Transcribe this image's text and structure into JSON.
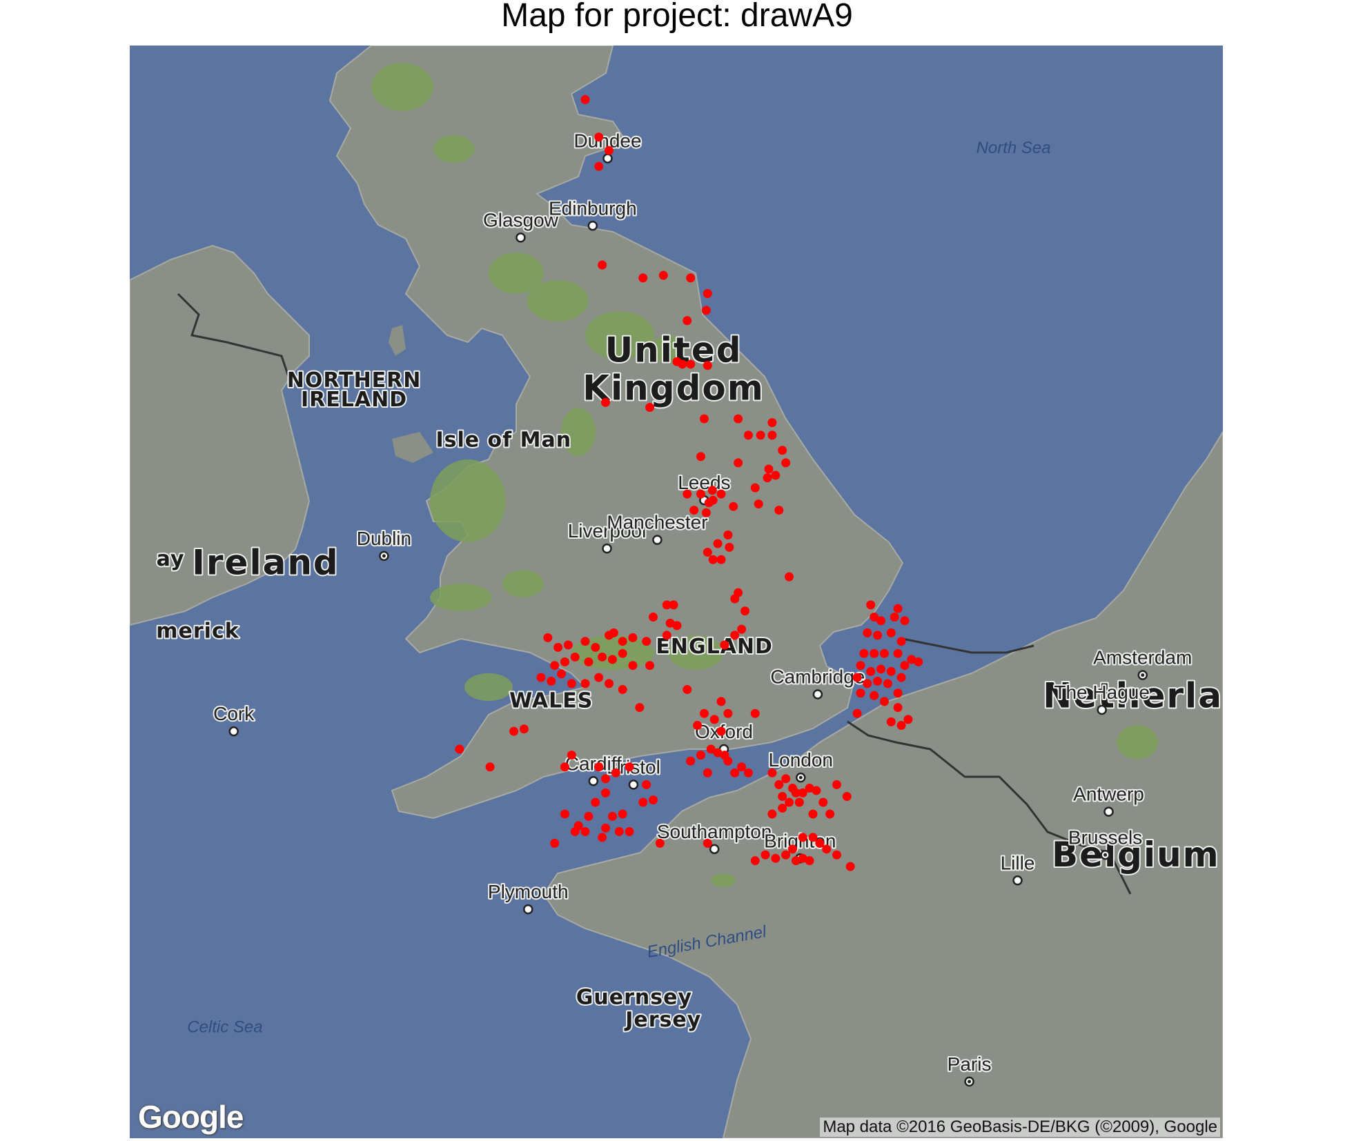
{
  "title": "Map for project: drawA9",
  "attribution": "Map data ©2016 GeoBasis-DE/BKG (©2009), Google",
  "logo": "Google",
  "colors": {
    "sea": "#5b74a0",
    "land": "#8a8f88",
    "forest": "#7ea05a",
    "point": "#ff0000",
    "border": "#333333"
  },
  "places": [
    {
      "name": "Dundee",
      "kind": "city",
      "lon": -2.97,
      "lat": 56.46
    },
    {
      "name": "Edinburgh",
      "kind": "city",
      "lon": -3.19,
      "lat": 55.95
    },
    {
      "name": "Glasgow",
      "kind": "city",
      "lon": -4.25,
      "lat": 55.86
    },
    {
      "name": "Liverpool",
      "kind": "city",
      "lon": -2.98,
      "lat": 53.41
    },
    {
      "name": "Manchester",
      "kind": "city",
      "lon": -2.24,
      "lat": 53.48
    },
    {
      "name": "Leeds",
      "kind": "city",
      "lon": -1.55,
      "lat": 53.8
    },
    {
      "name": "Dublin",
      "kind": "capital",
      "lon": -6.26,
      "lat": 53.35
    },
    {
      "name": "Cambridge",
      "kind": "city",
      "lon": 0.12,
      "lat": 52.21
    },
    {
      "name": "Oxford",
      "kind": "city",
      "lon": -1.26,
      "lat": 51.75
    },
    {
      "name": "London",
      "kind": "capital",
      "lon": -0.13,
      "lat": 51.51
    },
    {
      "name": "Bristol",
      "kind": "city",
      "lon": -2.59,
      "lat": 51.45
    },
    {
      "name": "Cardiff",
      "kind": "city",
      "lon": -3.18,
      "lat": 51.48
    },
    {
      "name": "Southampton",
      "kind": "city",
      "lon": -1.4,
      "lat": 50.9
    },
    {
      "name": "Brighton",
      "kind": "city",
      "lon": -0.14,
      "lat": 50.82
    },
    {
      "name": "Plymouth",
      "kind": "city",
      "lon": -4.14,
      "lat": 50.38
    },
    {
      "name": "Cork",
      "kind": "city",
      "lon": -8.47,
      "lat": 51.9
    },
    {
      "name": "Amsterdam",
      "kind": "capital",
      "lon": 4.9,
      "lat": 52.37
    },
    {
      "name": "The Hague",
      "kind": "city",
      "lon": 4.3,
      "lat": 52.08
    },
    {
      "name": "Antwerp",
      "kind": "city",
      "lon": 4.4,
      "lat": 51.22
    },
    {
      "name": "Brussels",
      "kind": "capital",
      "lon": 4.35,
      "lat": 50.85
    },
    {
      "name": "Lille",
      "kind": "city",
      "lon": 3.06,
      "lat": 50.63
    },
    {
      "name": "Paris",
      "kind": "capital",
      "lon": 2.35,
      "lat": 48.86
    }
  ],
  "regions": [
    {
      "name": "United",
      "lon": -2.0,
      "lat": 54.9
    },
    {
      "name": "Kingdom",
      "lon": -2.0,
      "lat": 54.6
    },
    {
      "name": "NORTHERN",
      "lon": -6.7,
      "lat": 54.7
    },
    {
      "name": "IRELAND",
      "lon": -6.7,
      "lat": 54.55
    },
    {
      "name": "Isle of Man",
      "lon": -4.5,
      "lat": 54.23
    },
    {
      "name": "Ireland",
      "lon": -8.0,
      "lat": 53.2
    },
    {
      "name": "ENGLAND",
      "lon": -1.4,
      "lat": 52.55
    },
    {
      "name": "WALES",
      "lon": -3.8,
      "lat": 52.1
    },
    {
      "name": "Guernsey",
      "lon": -2.58,
      "lat": 49.55
    },
    {
      "name": "Jersey",
      "lon": -2.15,
      "lat": 49.35
    },
    {
      "name": "Netherlands",
      "lon": 5.3,
      "lat": 52.1
    },
    {
      "name": "Belgium",
      "lon": 4.8,
      "lat": 50.75
    },
    {
      "name": "ay",
      "lon": -9.4,
      "lat": 53.27
    },
    {
      "name": "merick",
      "lon": -9.0,
      "lat": 52.68
    }
  ],
  "seas": [
    {
      "name": "North Sea",
      "lon": 3.0,
      "lat": 56.5
    },
    {
      "name": "English Channel",
      "lon": -1.5,
      "lat": 50.05
    },
    {
      "name": "Celtic Sea",
      "lon": -8.6,
      "lat": 49.3
    }
  ],
  "points": [
    [
      -3.3,
      56.9
    ],
    [
      -3.1,
      56.62
    ],
    [
      -2.95,
      56.52
    ],
    [
      -3.1,
      56.4
    ],
    [
      -3.05,
      55.65
    ],
    [
      -2.45,
      55.55
    ],
    [
      -2.15,
      55.57
    ],
    [
      -1.75,
      55.55
    ],
    [
      -1.5,
      55.43
    ],
    [
      -1.52,
      55.3
    ],
    [
      -1.8,
      55.22
    ],
    [
      -1.95,
      54.9
    ],
    [
      -1.87,
      54.88
    ],
    [
      -1.75,
      54.88
    ],
    [
      -1.5,
      54.87
    ],
    [
      -3.0,
      54.58
    ],
    [
      -2.35,
      54.54
    ],
    [
      -1.55,
      54.45
    ],
    [
      -1.05,
      54.45
    ],
    [
      -0.55,
      54.42
    ],
    [
      -0.9,
      54.32
    ],
    [
      -0.72,
      54.32
    ],
    [
      -0.55,
      54.32
    ],
    [
      -0.4,
      54.2
    ],
    [
      -0.35,
      54.1
    ],
    [
      -0.5,
      54.0
    ],
    [
      -0.6,
      54.05
    ],
    [
      -0.62,
      53.98
    ],
    [
      -0.8,
      53.9
    ],
    [
      -1.05,
      54.1
    ],
    [
      -1.6,
      54.15
    ],
    [
      -1.8,
      53.85
    ],
    [
      -1.6,
      53.85
    ],
    [
      -1.48,
      53.78
    ],
    [
      -1.42,
      53.8
    ],
    [
      -1.43,
      53.88
    ],
    [
      -1.7,
      53.72
    ],
    [
      -1.52,
      53.7
    ],
    [
      -1.3,
      53.85
    ],
    [
      -1.12,
      53.75
    ],
    [
      -0.75,
      53.77
    ],
    [
      -0.45,
      53.72
    ],
    [
      -1.2,
      53.52
    ],
    [
      -1.35,
      53.45
    ],
    [
      -1.18,
      53.42
    ],
    [
      -1.5,
      53.38
    ],
    [
      -1.42,
      53.32
    ],
    [
      -1.3,
      53.32
    ],
    [
      -0.3,
      53.18
    ],
    [
      -1.05,
      53.05
    ],
    [
      -1.1,
      53.0
    ],
    [
      -0.95,
      52.9
    ],
    [
      -2.1,
      52.95
    ],
    [
      -2.0,
      52.95
    ],
    [
      -2.3,
      52.85
    ],
    [
      -2.05,
      52.8
    ],
    [
      -1.95,
      52.78
    ],
    [
      -2.1,
      52.7
    ],
    [
      -1.1,
      52.7
    ],
    [
      -1.0,
      52.75
    ],
    [
      -1.25,
      52.62
    ],
    [
      -3.85,
      52.68
    ],
    [
      -3.7,
      52.6
    ],
    [
      -3.55,
      52.62
    ],
    [
      -3.3,
      52.65
    ],
    [
      -3.15,
      52.6
    ],
    [
      -2.95,
      52.7
    ],
    [
      -2.88,
      52.72
    ],
    [
      -2.75,
      52.65
    ],
    [
      -2.6,
      52.68
    ],
    [
      -2.4,
      52.65
    ],
    [
      -3.75,
      52.45
    ],
    [
      -3.6,
      52.48
    ],
    [
      -3.45,
      52.52
    ],
    [
      -3.25,
      52.48
    ],
    [
      -3.05,
      52.52
    ],
    [
      -2.9,
      52.5
    ],
    [
      -2.75,
      52.55
    ],
    [
      -2.6,
      52.45
    ],
    [
      -2.35,
      52.45
    ],
    [
      -3.95,
      52.35
    ],
    [
      -3.8,
      52.32
    ],
    [
      -3.65,
      52.38
    ],
    [
      -3.5,
      52.3
    ],
    [
      -3.3,
      52.3
    ],
    [
      -3.1,
      52.35
    ],
    [
      -2.95,
      52.3
    ],
    [
      -2.75,
      52.25
    ],
    [
      -2.5,
      52.1
    ],
    [
      -1.8,
      52.25
    ],
    [
      -1.3,
      52.15
    ],
    [
      -0.8,
      52.05
    ],
    [
      -1.55,
      52.05
    ],
    [
      -4.35,
      51.9
    ],
    [
      -4.2,
      51.92
    ],
    [
      -5.15,
      51.75
    ],
    [
      -4.7,
      51.6
    ],
    [
      -3.6,
      51.6
    ],
    [
      -3.5,
      51.7
    ],
    [
      -3.1,
      51.6
    ],
    [
      -3.0,
      51.5
    ],
    [
      -2.85,
      51.55
    ],
    [
      -2.65,
      51.6
    ],
    [
      -2.45,
      51.3
    ],
    [
      -2.3,
      51.32
    ],
    [
      -2.4,
      51.45
    ],
    [
      -3.0,
      51.38
    ],
    [
      -3.15,
      51.3
    ],
    [
      -3.25,
      51.18
    ],
    [
      -3.4,
      51.1
    ],
    [
      -3.3,
      51.05
    ],
    [
      -3.0,
      51.08
    ],
    [
      -2.9,
      51.18
    ],
    [
      -2.75,
      51.2
    ],
    [
      -3.6,
      51.2
    ],
    [
      -3.45,
      51.05
    ],
    [
      -3.05,
      51.0
    ],
    [
      -2.8,
      51.05
    ],
    [
      -2.65,
      51.05
    ],
    [
      -2.2,
      50.95
    ],
    [
      -3.75,
      50.95
    ],
    [
      -1.75,
      51.65
    ],
    [
      -1.6,
      51.7
    ],
    [
      -1.45,
      51.75
    ],
    [
      -1.35,
      51.72
    ],
    [
      -1.25,
      51.7
    ],
    [
      -1.2,
      51.65
    ],
    [
      -1.1,
      51.55
    ],
    [
      -1.0,
      51.6
    ],
    [
      -0.9,
      51.55
    ],
    [
      -1.5,
      51.55
    ],
    [
      -1.65,
      51.95
    ],
    [
      -1.4,
      52.0
    ],
    [
      -1.3,
      51.9
    ],
    [
      -1.2,
      52.05
    ],
    [
      -0.55,
      51.55
    ],
    [
      -0.45,
      51.45
    ],
    [
      -0.35,
      51.5
    ],
    [
      -0.25,
      51.42
    ],
    [
      -0.2,
      51.38
    ],
    [
      -0.1,
      51.38
    ],
    [
      0.0,
      51.42
    ],
    [
      0.1,
      51.4
    ],
    [
      0.4,
      51.45
    ],
    [
      0.55,
      51.35
    ],
    [
      0.2,
      51.3
    ],
    [
      0.3,
      51.2
    ],
    [
      0.05,
      51.2
    ],
    [
      -0.4,
      51.35
    ],
    [
      -0.3,
      51.3
    ],
    [
      -0.15,
      51.3
    ],
    [
      -0.55,
      51.2
    ],
    [
      -0.4,
      51.25
    ],
    [
      -0.1,
      51.0
    ],
    [
      0.05,
      51.0
    ],
    [
      0.15,
      50.95
    ],
    [
      0.25,
      50.9
    ],
    [
      0.4,
      50.85
    ],
    [
      -0.25,
      50.9
    ],
    [
      -0.35,
      50.85
    ],
    [
      -0.5,
      50.82
    ],
    [
      -0.2,
      50.8
    ],
    [
      -0.1,
      50.82
    ],
    [
      0.0,
      50.8
    ],
    [
      0.6,
      50.75
    ],
    [
      -0.65,
      50.85
    ],
    [
      -0.8,
      50.8
    ],
    [
      -1.5,
      50.95
    ],
    [
      0.9,
      52.95
    ],
    [
      1.3,
      52.92
    ],
    [
      0.95,
      52.85
    ],
    [
      1.05,
      52.82
    ],
    [
      1.25,
      52.85
    ],
    [
      1.4,
      52.82
    ],
    [
      0.85,
      52.72
    ],
    [
      1.0,
      52.7
    ],
    [
      1.2,
      52.72
    ],
    [
      1.35,
      52.65
    ],
    [
      1.5,
      52.5
    ],
    [
      1.6,
      52.48
    ],
    [
      0.8,
      52.55
    ],
    [
      0.95,
      52.55
    ],
    [
      1.1,
      52.55
    ],
    [
      1.3,
      52.55
    ],
    [
      1.4,
      52.45
    ],
    [
      0.75,
      52.45
    ],
    [
      0.9,
      52.4
    ],
    [
      1.05,
      52.42
    ],
    [
      1.2,
      52.4
    ],
    [
      1.35,
      52.35
    ],
    [
      0.7,
      52.35
    ],
    [
      0.85,
      52.3
    ],
    [
      1.0,
      52.32
    ],
    [
      1.15,
      52.3
    ],
    [
      1.3,
      52.22
    ],
    [
      0.75,
      52.22
    ],
    [
      0.95,
      52.2
    ],
    [
      1.1,
      52.15
    ],
    [
      1.3,
      52.1
    ],
    [
      1.45,
      52.0
    ],
    [
      1.2,
      51.98
    ],
    [
      1.35,
      51.95
    ],
    [
      0.7,
      52.05
    ]
  ]
}
